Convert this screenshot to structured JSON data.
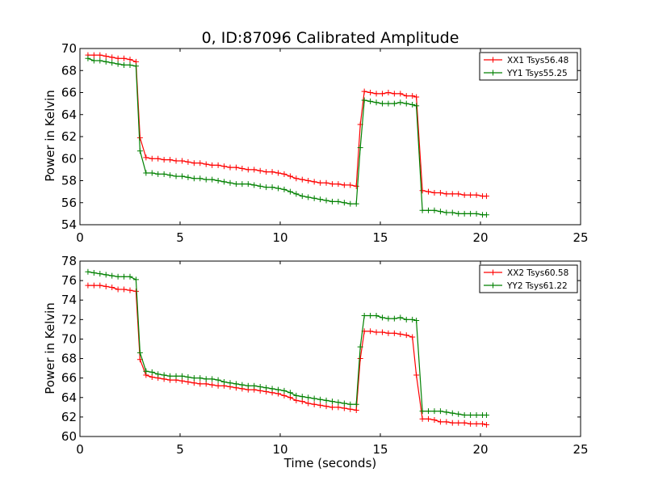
{
  "chart_data": [
    {
      "type": "line",
      "title": "0, ID:87096 Calibrated Amplitude",
      "xlabel": "",
      "ylabel": "Power in Kelvin",
      "xlim": [
        0,
        25
      ],
      "ylim": [
        54,
        70
      ],
      "xticks": [
        0,
        5,
        10,
        15,
        20,
        25
      ],
      "yticks": [
        54,
        56,
        58,
        60,
        62,
        64,
        66,
        68,
        70
      ],
      "xtick_labels": [
        "0",
        "5",
        "10",
        "15",
        "20",
        "25"
      ],
      "ytick_labels": [
        "54",
        "56",
        "58",
        "60",
        "62",
        "64",
        "66",
        "68",
        "70"
      ],
      "grid": false,
      "legend_position": "top-right",
      "series": [
        {
          "name": "XX1 Tsys56.48",
          "color": "#ff0000",
          "x": [
            0.4,
            0.7,
            1.0,
            1.3,
            1.6,
            1.9,
            2.2,
            2.5,
            2.8,
            3.0,
            3.3,
            3.6,
            3.9,
            4.2,
            4.5,
            4.8,
            5.1,
            5.4,
            5.7,
            6.0,
            6.3,
            6.6,
            6.9,
            7.2,
            7.5,
            7.8,
            8.1,
            8.4,
            8.7,
            9.0,
            9.3,
            9.6,
            9.9,
            10.2,
            10.5,
            10.8,
            11.1,
            11.4,
            11.7,
            12.0,
            12.3,
            12.6,
            12.9,
            13.2,
            13.5,
            13.8,
            14.0,
            14.2,
            14.5,
            14.8,
            15.1,
            15.4,
            15.7,
            16.0,
            16.3,
            16.6,
            16.8,
            17.1,
            17.4,
            17.7,
            18.0,
            18.3,
            18.6,
            18.9,
            19.2,
            19.5,
            19.8,
            20.1,
            20.3
          ],
          "y": [
            69.4,
            69.4,
            69.4,
            69.3,
            69.2,
            69.1,
            69.1,
            69.0,
            68.8,
            61.9,
            60.1,
            60.0,
            60.0,
            59.9,
            59.9,
            59.8,
            59.8,
            59.7,
            59.6,
            59.6,
            59.5,
            59.4,
            59.4,
            59.3,
            59.2,
            59.2,
            59.1,
            59.0,
            59.0,
            58.9,
            58.8,
            58.8,
            58.7,
            58.6,
            58.4,
            58.2,
            58.1,
            58.0,
            57.9,
            57.8,
            57.8,
            57.7,
            57.7,
            57.6,
            57.6,
            57.5,
            63.1,
            66.1,
            66.0,
            65.9,
            65.9,
            66.0,
            65.9,
            65.9,
            65.7,
            65.7,
            65.6,
            57.1,
            57.0,
            56.9,
            56.9,
            56.8,
            56.8,
            56.8,
            56.7,
            56.7,
            56.7,
            56.6,
            56.6
          ]
        },
        {
          "name": "YY1 Tsys55.25",
          "color": "#008000",
          "x": [
            0.4,
            0.7,
            1.0,
            1.3,
            1.6,
            1.9,
            2.2,
            2.5,
            2.8,
            3.0,
            3.3,
            3.6,
            3.9,
            4.2,
            4.5,
            4.8,
            5.1,
            5.4,
            5.7,
            6.0,
            6.3,
            6.6,
            6.9,
            7.2,
            7.5,
            7.8,
            8.1,
            8.4,
            8.7,
            9.0,
            9.3,
            9.6,
            9.9,
            10.2,
            10.5,
            10.8,
            11.1,
            11.4,
            11.7,
            12.0,
            12.3,
            12.6,
            12.9,
            13.2,
            13.5,
            13.8,
            14.0,
            14.2,
            14.5,
            14.8,
            15.1,
            15.4,
            15.7,
            16.0,
            16.3,
            16.6,
            16.8,
            17.1,
            17.4,
            17.7,
            18.0,
            18.3,
            18.6,
            18.9,
            19.2,
            19.5,
            19.8,
            20.1,
            20.3
          ],
          "y": [
            69.1,
            68.9,
            68.9,
            68.8,
            68.7,
            68.6,
            68.5,
            68.5,
            68.4,
            60.7,
            58.7,
            58.7,
            58.6,
            58.6,
            58.5,
            58.4,
            58.4,
            58.3,
            58.2,
            58.2,
            58.1,
            58.1,
            58.0,
            57.9,
            57.8,
            57.7,
            57.7,
            57.7,
            57.6,
            57.5,
            57.4,
            57.4,
            57.3,
            57.2,
            57.0,
            56.8,
            56.6,
            56.5,
            56.4,
            56.3,
            56.2,
            56.1,
            56.1,
            56.0,
            55.9,
            55.9,
            61.0,
            65.3,
            65.2,
            65.1,
            65.0,
            65.0,
            65.0,
            65.1,
            65.0,
            64.9,
            64.8,
            55.3,
            55.3,
            55.3,
            55.2,
            55.1,
            55.1,
            55.0,
            55.0,
            55.0,
            55.0,
            54.9,
            54.9
          ]
        }
      ]
    },
    {
      "type": "line",
      "title": "",
      "xlabel": "Time (seconds)",
      "ylabel": "Power in Kelvin",
      "xlim": [
        0,
        25
      ],
      "ylim": [
        60,
        78
      ],
      "xticks": [
        0,
        5,
        10,
        15,
        20,
        25
      ],
      "yticks": [
        60,
        62,
        64,
        66,
        68,
        70,
        72,
        74,
        76,
        78
      ],
      "xtick_labels": [
        "0",
        "5",
        "10",
        "15",
        "20",
        "25"
      ],
      "ytick_labels": [
        "60",
        "62",
        "64",
        "66",
        "68",
        "70",
        "72",
        "74",
        "76",
        "78"
      ],
      "grid": false,
      "legend_position": "top-right",
      "series": [
        {
          "name": "XX2 Tsys60.58",
          "color": "#ff0000",
          "x": [
            0.4,
            0.7,
            1.0,
            1.3,
            1.6,
            1.9,
            2.2,
            2.5,
            2.8,
            3.0,
            3.3,
            3.6,
            3.9,
            4.2,
            4.5,
            4.8,
            5.1,
            5.4,
            5.7,
            6.0,
            6.3,
            6.6,
            6.9,
            7.2,
            7.5,
            7.8,
            8.1,
            8.4,
            8.7,
            9.0,
            9.3,
            9.6,
            9.9,
            10.2,
            10.5,
            10.8,
            11.1,
            11.4,
            11.7,
            12.0,
            12.3,
            12.6,
            12.9,
            13.2,
            13.5,
            13.8,
            14.0,
            14.2,
            14.5,
            14.8,
            15.1,
            15.4,
            15.7,
            16.0,
            16.3,
            16.6,
            16.8,
            17.1,
            17.4,
            17.7,
            18.0,
            18.3,
            18.6,
            18.9,
            19.2,
            19.5,
            19.8,
            20.1,
            20.3
          ],
          "y": [
            75.5,
            75.5,
            75.5,
            75.4,
            75.3,
            75.1,
            75.1,
            75.0,
            74.9,
            67.9,
            66.3,
            66.1,
            66.0,
            65.9,
            65.8,
            65.8,
            65.7,
            65.6,
            65.5,
            65.4,
            65.4,
            65.3,
            65.2,
            65.2,
            65.1,
            65.0,
            64.9,
            64.8,
            64.8,
            64.7,
            64.6,
            64.5,
            64.4,
            64.2,
            64.0,
            63.7,
            63.6,
            63.4,
            63.3,
            63.2,
            63.1,
            63.0,
            63.0,
            62.9,
            62.8,
            62.7,
            68.0,
            70.8,
            70.8,
            70.7,
            70.7,
            70.6,
            70.6,
            70.5,
            70.4,
            70.2,
            66.3,
            61.8,
            61.8,
            61.7,
            61.5,
            61.5,
            61.4,
            61.4,
            61.4,
            61.3,
            61.3,
            61.3,
            61.2
          ]
        },
        {
          "name": "YY2 Tsys61.22",
          "color": "#008000",
          "x": [
            0.4,
            0.7,
            1.0,
            1.3,
            1.6,
            1.9,
            2.2,
            2.5,
            2.8,
            3.0,
            3.3,
            3.6,
            3.9,
            4.2,
            4.5,
            4.8,
            5.1,
            5.4,
            5.7,
            6.0,
            6.3,
            6.6,
            6.9,
            7.2,
            7.5,
            7.8,
            8.1,
            8.4,
            8.7,
            9.0,
            9.3,
            9.6,
            9.9,
            10.2,
            10.5,
            10.8,
            11.1,
            11.4,
            11.7,
            12.0,
            12.3,
            12.6,
            12.9,
            13.2,
            13.5,
            13.8,
            14.0,
            14.2,
            14.5,
            14.8,
            15.1,
            15.4,
            15.7,
            16.0,
            16.3,
            16.6,
            16.8,
            17.1,
            17.4,
            17.7,
            18.0,
            18.3,
            18.6,
            18.9,
            19.2,
            19.5,
            19.8,
            20.1,
            20.3
          ],
          "y": [
            76.9,
            76.8,
            76.7,
            76.6,
            76.5,
            76.4,
            76.4,
            76.4,
            76.1,
            68.6,
            66.7,
            66.6,
            66.4,
            66.3,
            66.2,
            66.2,
            66.2,
            66.1,
            66.0,
            66.0,
            65.9,
            65.9,
            65.8,
            65.6,
            65.5,
            65.4,
            65.3,
            65.2,
            65.2,
            65.1,
            65.0,
            64.9,
            64.8,
            64.7,
            64.5,
            64.2,
            64.1,
            64.0,
            63.9,
            63.8,
            63.7,
            63.6,
            63.5,
            63.4,
            63.3,
            63.3,
            69.2,
            72.4,
            72.4,
            72.4,
            72.2,
            72.1,
            72.1,
            72.2,
            72.0,
            72.0,
            71.9,
            62.6,
            62.6,
            62.6,
            62.6,
            62.5,
            62.4,
            62.3,
            62.2,
            62.2,
            62.2,
            62.2,
            62.2
          ]
        }
      ]
    }
  ]
}
